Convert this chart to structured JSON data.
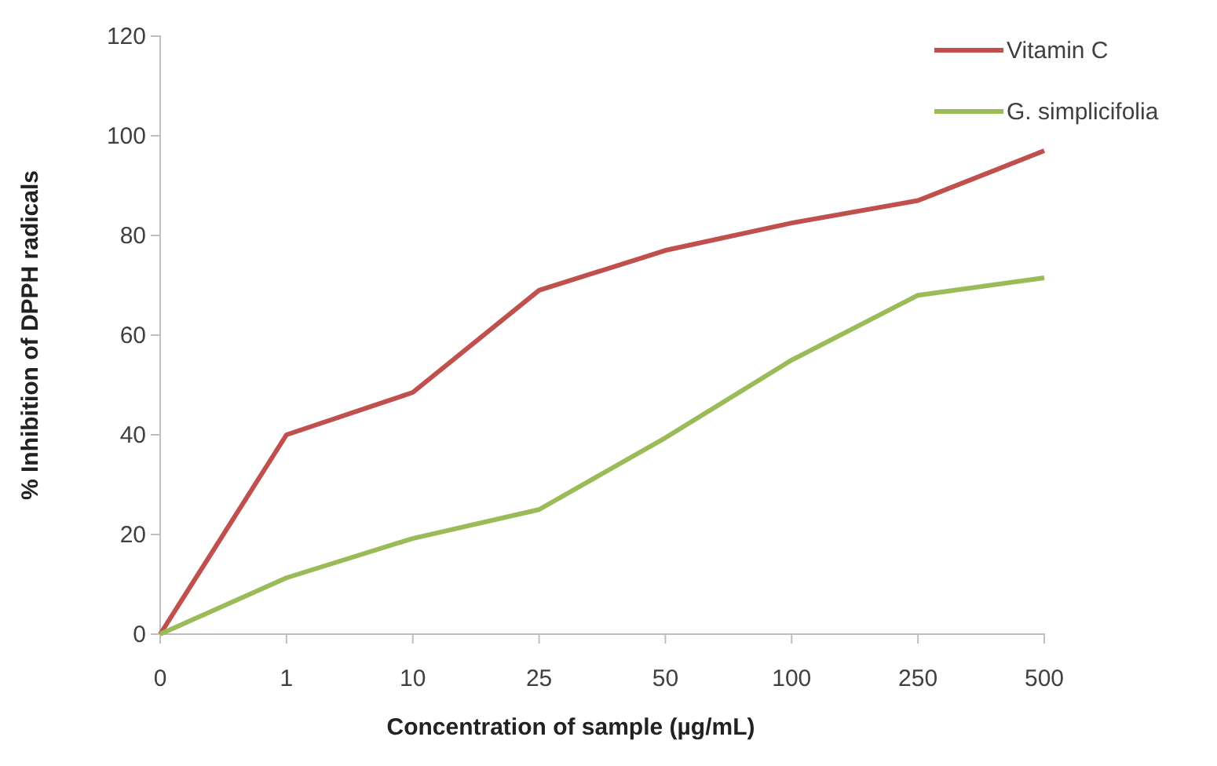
{
  "chart_data": {
    "type": "line",
    "xlabel": "Concentration of sample (µg/mL)",
    "ylabel": "%  Inhibition of DPPH radicals",
    "categories": [
      "0",
      "1",
      "10",
      "25",
      "50",
      "100",
      "250",
      "500"
    ],
    "series": [
      {
        "name": "Vitamin C",
        "color": "#c0504d",
        "values": [
          0,
          40,
          48.5,
          69,
          77,
          82.5,
          87,
          97
        ]
      },
      {
        "name": "G. simplicifolia",
        "color": "#9bbb59",
        "values": [
          0,
          11.3,
          19.2,
          25,
          39.4,
          55,
          68,
          71.5
        ]
      }
    ],
    "ylim": [
      0,
      120
    ],
    "yticks": [
      0,
      20,
      40,
      60,
      80,
      100,
      120
    ],
    "grid": false,
    "legend": "top right",
    "marker": "none",
    "line_style": "solid"
  }
}
